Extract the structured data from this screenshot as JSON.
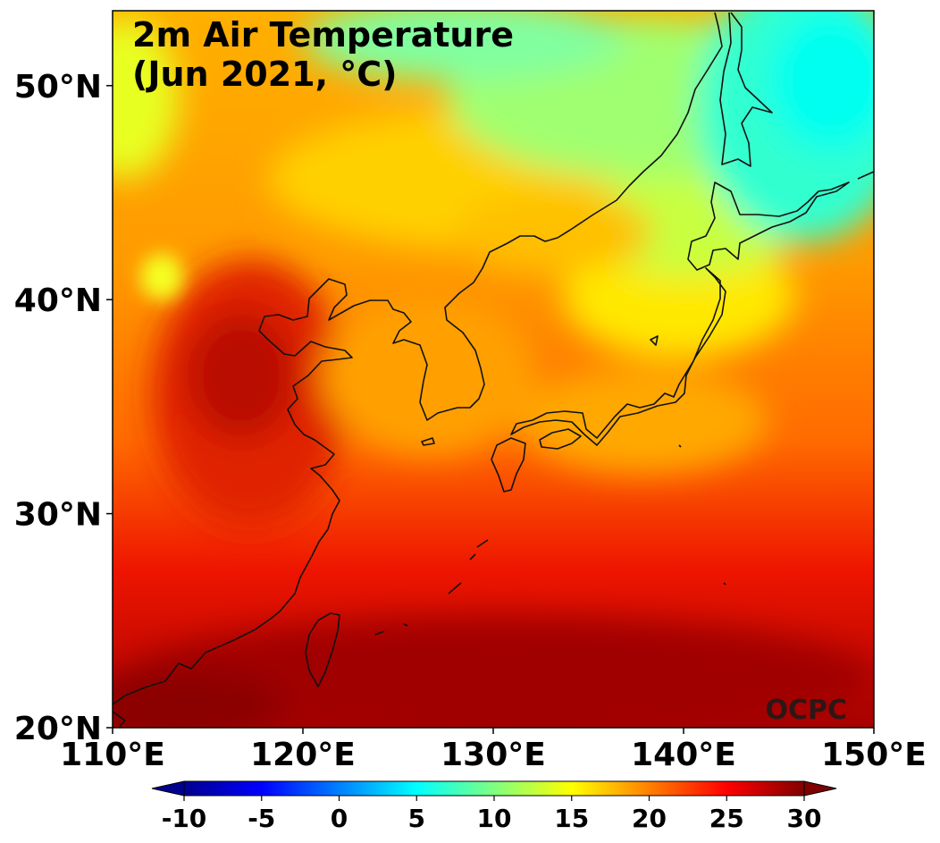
{
  "map": {
    "title_line1": "2m Air Temperature",
    "title_line2": "(Jun 2021, °C)",
    "watermark": "OCPC",
    "lon_range": [
      110,
      150
    ],
    "lat_range": [
      20,
      53.5
    ],
    "x_ticks": [
      {
        "value": 110,
        "label": "110°E"
      },
      {
        "value": 120,
        "label": "120°E"
      },
      {
        "value": 130,
        "label": "130°E"
      },
      {
        "value": 140,
        "label": "140°E"
      },
      {
        "value": 150,
        "label": "150°E"
      }
    ],
    "y_ticks": [
      {
        "value": 20,
        "label": "20°N"
      },
      {
        "value": 30,
        "label": "30°N"
      },
      {
        "value": 40,
        "label": "40°N"
      },
      {
        "value": 50,
        "label": "50°N"
      }
    ],
    "colormap": "jet",
    "coastlines": true
  },
  "colorbar": {
    "range": [
      -10,
      30
    ],
    "extend": "both",
    "ticks": [
      {
        "value": -10,
        "label": "-10"
      },
      {
        "value": -5,
        "label": "-5"
      },
      {
        "value": 0,
        "label": "0"
      },
      {
        "value": 5,
        "label": "5"
      },
      {
        "value": 10,
        "label": "10"
      },
      {
        "value": 15,
        "label": "15"
      },
      {
        "value": 20,
        "label": "20"
      },
      {
        "value": 25,
        "label": "25"
      },
      {
        "value": 30,
        "label": "30"
      }
    ]
  }
}
